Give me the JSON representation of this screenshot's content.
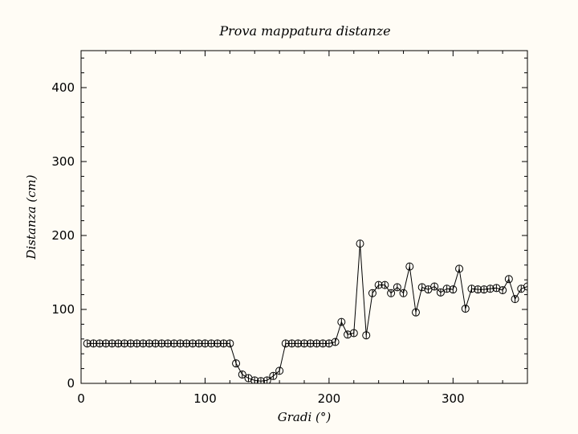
{
  "chart_data": {
    "type": "scatter",
    "title": "Prova mappatura distanze",
    "xlabel": "Gradi (°)",
    "ylabel": "Distanza (cm)",
    "xlim": [
      0,
      360
    ],
    "ylim": [
      0,
      450
    ],
    "xticks": [
      0,
      100,
      200,
      300
    ],
    "yticks": [
      0,
      100,
      200,
      300,
      400
    ],
    "grid": false,
    "marker": "open-circle-with-errorbar",
    "line": true,
    "colors": {
      "line": "#000000",
      "background": "#fffcf5"
    },
    "series": [
      {
        "x": [
          5,
          10,
          15,
          20,
          25,
          30,
          35,
          40,
          45,
          50,
          55,
          60,
          65,
          70,
          75,
          80,
          85,
          90,
          95,
          100,
          105,
          110,
          115,
          120,
          125,
          130,
          135,
          140,
          145,
          150,
          155,
          160,
          165,
          170,
          175,
          180,
          185,
          190,
          195,
          200,
          205,
          210,
          215,
          220,
          225,
          230,
          235,
          240,
          245,
          250,
          255,
          260,
          265,
          270,
          275,
          280,
          285,
          290,
          295,
          300,
          305,
          310,
          315,
          320,
          325,
          330,
          335,
          340,
          345,
          350,
          355,
          360
        ],
        "y": [
          54,
          54,
          54,
          54,
          54,
          54,
          54,
          54,
          54,
          54,
          54,
          54,
          54,
          54,
          54,
          54,
          54,
          54,
          54,
          54,
          54,
          54,
          54,
          54,
          27,
          12,
          7,
          4,
          3,
          4,
          10,
          17,
          54,
          54,
          54,
          54,
          54,
          54,
          54,
          54,
          56,
          83,
          66,
          68,
          189,
          65,
          122,
          133,
          133,
          122,
          130,
          122,
          158,
          96,
          130,
          127,
          131,
          123,
          128,
          127,
          155,
          101,
          128,
          127,
          127,
          128,
          129,
          126,
          141,
          114,
          128,
          131
        ]
      }
    ]
  }
}
